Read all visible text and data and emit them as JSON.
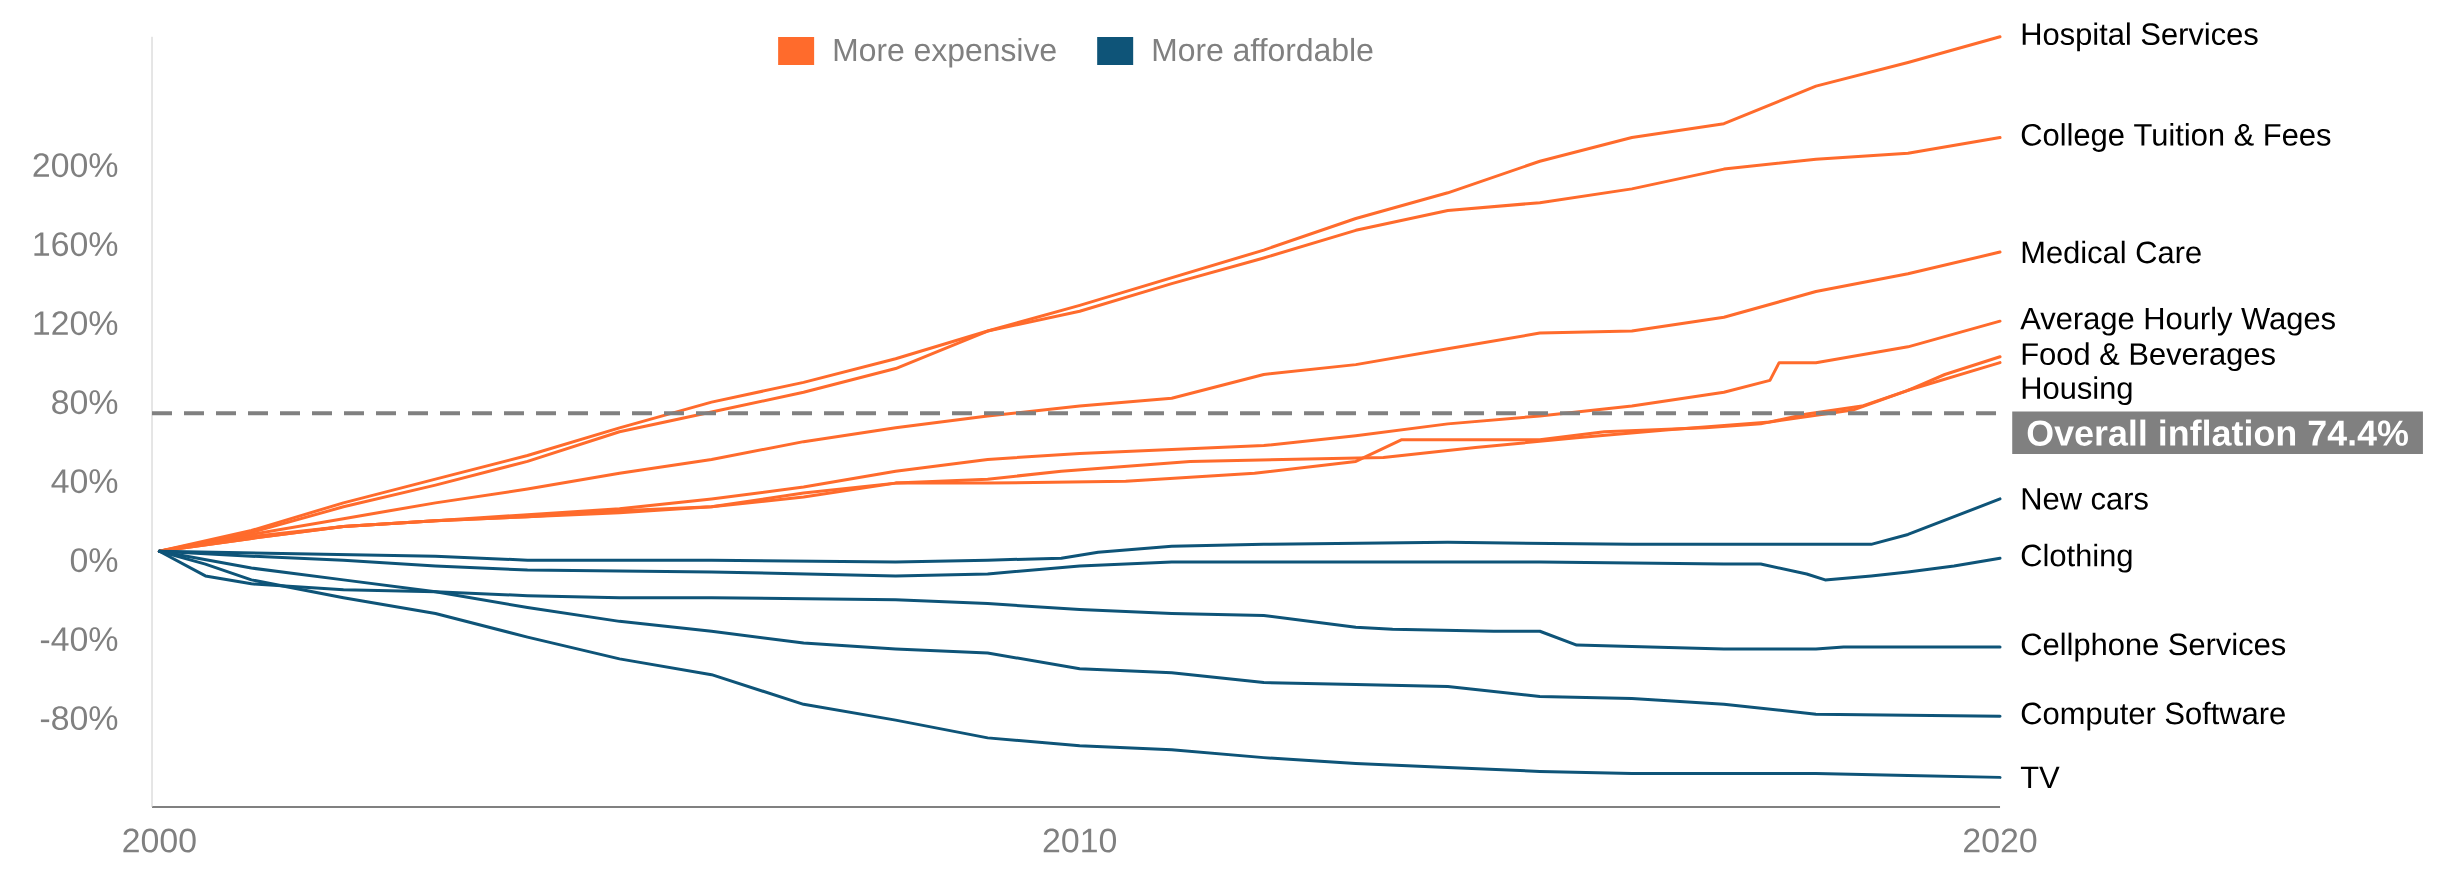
{
  "chart_data": {
    "type": "line",
    "xlim": [
      1999.92,
      2020
    ],
    "ylim": [
      -125,
      265
    ],
    "xticks": [
      2000,
      2010,
      2020
    ],
    "yticks": [
      {
        "value": -80,
        "label": "-80%"
      },
      {
        "value": -40,
        "label": "-40%"
      },
      {
        "value": 0,
        "label": "0%"
      },
      {
        "value": 40,
        "label": "40%"
      },
      {
        "value": 80,
        "label": "80%"
      },
      {
        "value": 120,
        "label": "120%"
      },
      {
        "value": 160,
        "label": "160%"
      },
      {
        "value": 200,
        "label": "200%"
      }
    ],
    "legend": "top",
    "marker": "none",
    "annotations": [
      "More expensive",
      "More affordable"
    ],
    "ref_lines": [
      {
        "axis": "y",
        "value": 74.4,
        "label": "Overall inflation 74.4%",
        "color": "#808080",
        "line_style": "dashed"
      }
    ],
    "series": [
      {
        "name": "Hospital Services",
        "color": "#ff6b2c",
        "x": [
          2000,
          2001,
          2002,
          2003,
          2004,
          2005,
          2006,
          2007,
          2008,
          2009,
          2010,
          2011,
          2012,
          2013,
          2014,
          2015,
          2016,
          2017,
          2018,
          2019,
          2020
        ],
        "values": [
          4.5,
          14,
          27,
          38,
          50,
          65,
          75,
          85,
          97,
          116,
          129,
          143,
          157,
          173,
          186,
          202,
          214,
          221,
          240,
          252,
          265
        ]
      },
      {
        "name": "College Tuition & Fees",
        "color": "#ff6b2c",
        "x": [
          2000,
          2001,
          2002,
          2003,
          2004,
          2005,
          2006,
          2007,
          2008,
          2009,
          2010,
          2011,
          2012,
          2013,
          2014,
          2015,
          2016,
          2017,
          2018,
          2019,
          2020
        ],
        "values": [
          4.5,
          15,
          29,
          41,
          53,
          67,
          80,
          90,
          102,
          116,
          126,
          140,
          153,
          167,
          177,
          181,
          188,
          198,
          203,
          206,
          214
        ]
      },
      {
        "name": "Medical Care",
        "color": "#ff6b2c",
        "x": [
          2000,
          2001,
          2002,
          2003,
          2004,
          2005,
          2006,
          2007,
          2008,
          2009,
          2010,
          2011,
          2012,
          2013,
          2014,
          2015,
          2016,
          2017,
          2018,
          2019,
          2020
        ],
        "values": [
          4.5,
          13,
          21,
          29,
          36,
          44,
          51,
          60,
          67,
          73,
          78,
          82,
          94,
          99,
          107,
          115,
          116,
          123,
          136,
          145,
          156
        ]
      },
      {
        "name": "Average Hourly Wages",
        "color": "#ff6b2c",
        "x": [
          2000,
          2001,
          2002,
          2003,
          2004,
          2005,
          2006,
          2007,
          2008,
          2009,
          2010,
          2011,
          2012,
          2013,
          2014,
          2015,
          2016,
          2017,
          2017.5,
          2017.6,
          2018,
          2019,
          2020
        ],
        "values": [
          4.5,
          12,
          17,
          20,
          23,
          26,
          31,
          37,
          45,
          51,
          54,
          56,
          58,
          63,
          69,
          73,
          78,
          85,
          91,
          100,
          100,
          108,
          121
        ]
      },
      {
        "name": "Food & Beverages",
        "color": "#ff6b2c",
        "x": [
          2000,
          2001,
          2002,
          2003,
          2004,
          2005,
          2006,
          2007,
          2008,
          2009,
          2009.8,
          2011.2,
          2013.3,
          2014.3,
          2015.4,
          2016.4,
          2017.5,
          2018.4,
          2019,
          2019.4,
          2020
        ],
        "values": [
          4.5,
          11,
          17,
          20,
          22,
          25,
          27,
          32,
          39,
          41,
          45,
          50,
          52,
          57,
          62,
          66,
          70,
          76,
          86,
          94,
          103
        ]
      },
      {
        "name": "Housing",
        "color": "#ff6b2c",
        "x": [
          2000,
          2001,
          2002,
          2003,
          2004,
          2005,
          2006,
          2007,
          2008,
          2009,
          2010.5,
          2011.9,
          2013,
          2013.5,
          2015,
          2015.7,
          2016.8,
          2017.4,
          2017.9,
          2018.5,
          2019,
          2020
        ],
        "values": [
          4.5,
          11,
          17,
          20,
          22,
          24,
          27,
          34,
          39,
          39,
          40,
          44,
          50,
          61,
          61,
          65,
          67,
          69,
          74,
          78,
          86,
          100
        ]
      },
      {
        "name": "New cars",
        "color": "#0e5478",
        "x": [
          2000,
          2003,
          2004,
          2006,
          2008,
          2009,
          2009.8,
          2010.2,
          2011,
          2012,
          2014,
          2016,
          2017,
          2018.6,
          2019,
          2019.5,
          2020
        ],
        "values": [
          4.5,
          2,
          0,
          0,
          -1,
          0,
          1,
          4,
          7,
          8,
          9,
          8,
          8,
          8,
          13,
          22,
          31
        ]
      },
      {
        "name": "Clothing",
        "color": "#0e5478",
        "x": [
          2000,
          2001,
          2002,
          2003,
          2004,
          2006,
          2008,
          2009,
          2010,
          2011,
          2013,
          2015,
          2017,
          2017.4,
          2017.9,
          2018.1,
          2018.6,
          2019,
          2019.5,
          2020
        ],
        "values": [
          4.5,
          2,
          0,
          -3,
          -5,
          -6,
          -8,
          -7,
          -3,
          -1,
          -1,
          -1,
          -2,
          -2,
          -7,
          -10,
          -8,
          -6,
          -3,
          1
        ]
      },
      {
        "name": "Cellphone Services",
        "color": "#0e5478",
        "x": [
          2000,
          2000.5,
          2001,
          2002,
          2003,
          2004,
          2005,
          2006,
          2008,
          2009,
          2010,
          2011,
          2012,
          2013,
          2013.4,
          2014.5,
          2015,
          2015.4,
          2017,
          2018,
          2018.3,
          2020
        ],
        "values": [
          4.5,
          -8,
          -12,
          -15,
          -16,
          -18,
          -19,
          -19,
          -20,
          -22,
          -25,
          -27,
          -28,
          -34,
          -35,
          -36,
          -36,
          -43,
          -45,
          -45,
          -44,
          -44
        ]
      },
      {
        "name": "Computer Software",
        "color": "#0e5478",
        "x": [
          2000,
          2001,
          2002,
          2003,
          2004,
          2005,
          2006,
          2007,
          2008,
          2009,
          2010,
          2011,
          2012,
          2013,
          2014,
          2015,
          2016,
          2017,
          2018,
          2020
        ],
        "values": [
          4.5,
          -4,
          -10,
          -16,
          -24,
          -31,
          -36,
          -42,
          -45,
          -47,
          -55,
          -57,
          -62,
          -63,
          -64,
          -69,
          -70,
          -73,
          -78,
          -79
        ]
      },
      {
        "name": "TV",
        "color": "#0e5478",
        "x": [
          2000,
          2000.5,
          2001,
          2002,
          2003,
          2004,
          2005,
          2006,
          2007,
          2008,
          2009,
          2010,
          2011,
          2012,
          2013,
          2014,
          2015,
          2016,
          2018,
          2019,
          2020
        ],
        "values": [
          4.5,
          -2,
          -10,
          -19,
          -27,
          -39,
          -50,
          -58,
          -73,
          -81,
          -90,
          -94,
          -96,
          -100,
          -103,
          -105,
          -107,
          -108,
          -108,
          -109,
          -110
        ]
      }
    ]
  }
}
